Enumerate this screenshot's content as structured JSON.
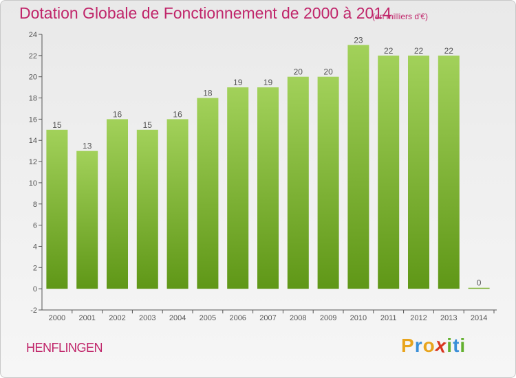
{
  "title": "Dotation Globale de Fonctionnement de 2000 à 2014",
  "unit": "(en milliers d'€)",
  "commune": "HENFLINGEN",
  "logo": {
    "letters": [
      "P",
      "r",
      "o",
      "x",
      "i",
      "t",
      "i"
    ],
    "colors": [
      "#e8a41c",
      "#3a8fd8",
      "#e8a41c",
      "#d8361f",
      "#63b02f",
      "#3a8fd8",
      "#63b02f"
    ]
  },
  "colors": {
    "bar_top": "#a2d15a",
    "bar_bottom": "#5f9717",
    "label": "#555555",
    "accent": "#c0256a"
  },
  "chart_data": {
    "type": "bar",
    "categories": [
      "2000",
      "2001",
      "2002",
      "2003",
      "2004",
      "2005",
      "2006",
      "2007",
      "2008",
      "2009",
      "2010",
      "2011",
      "2012",
      "2013",
      "2014"
    ],
    "values": [
      15,
      13,
      16,
      15,
      16,
      18,
      19,
      19,
      20,
      20,
      23,
      22,
      22,
      22,
      0
    ],
    "value_labels": [
      "15",
      "13",
      "16",
      "15",
      "16",
      "18",
      "19",
      "19",
      "20",
      "20",
      "23",
      "22",
      "22",
      "22",
      "0"
    ],
    "yticks": [
      "-2",
      "0",
      "2",
      "4",
      "6",
      "8",
      "10",
      "12",
      "14",
      "16",
      "18",
      "20",
      "22",
      "24"
    ],
    "ylim": [
      -2,
      24
    ],
    "grid": false
  }
}
